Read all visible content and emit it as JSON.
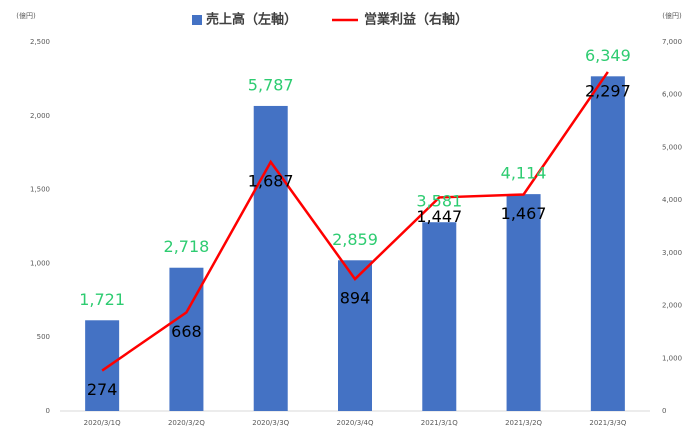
{
  "chart_data": {
    "type": "bar-line",
    "y_unit": "(億円)",
    "y2_unit": "(億円)",
    "categories": [
      "2020/3/1Q",
      "2020/3/2Q",
      "2020/3/3Q",
      "2020/3/4Q",
      "2021/3/1Q",
      "2021/3/2Q",
      "2021/3/3Q"
    ],
    "series": [
      {
        "name": "売上高（左軸）",
        "type": "bar",
        "axis": "y2",
        "color": "#4472c4",
        "values": [
          1721,
          2718,
          5787,
          2859,
          3581,
          4114,
          6349
        ],
        "value_labels": [
          "1,721",
          "2,718",
          "5,787",
          "2,859",
          "3,581",
          "4,114",
          "6,349"
        ],
        "label_color": "#2ecc71"
      },
      {
        "name": "営業利益（右軸）",
        "type": "line",
        "axis": "y",
        "color": "#ff0000",
        "values": [
          274,
          668,
          1687,
          894,
          1447,
          1467,
          2297
        ],
        "value_labels": [
          "274",
          "668",
          "1,687",
          "894",
          "1,447",
          "1,467",
          "2,297"
        ],
        "label_color": "#000000"
      }
    ],
    "ylim": [
      0,
      2500
    ],
    "yticks": [
      0,
      500,
      {
        "value": 1000,
        "label": "1,000"
      },
      {
        "value": 1500,
        "label": "1,500"
      },
      {
        "value": 2000,
        "label": "2,000"
      },
      {
        "value": 2500,
        "label": "2,500"
      }
    ],
    "y2lim": [
      0,
      7000
    ],
    "y2ticks": [
      0,
      {
        "value": 1000,
        "label": "1,000"
      },
      {
        "value": 2000,
        "label": "2,000"
      },
      {
        "value": 3000,
        "label": "3,000"
      },
      {
        "value": 4000,
        "label": "4,000"
      },
      {
        "value": 5000,
        "label": "5,000"
      },
      {
        "value": 6000,
        "label": "6,000"
      },
      {
        "value": 7000,
        "label": "7,000"
      }
    ],
    "grid": false
  }
}
